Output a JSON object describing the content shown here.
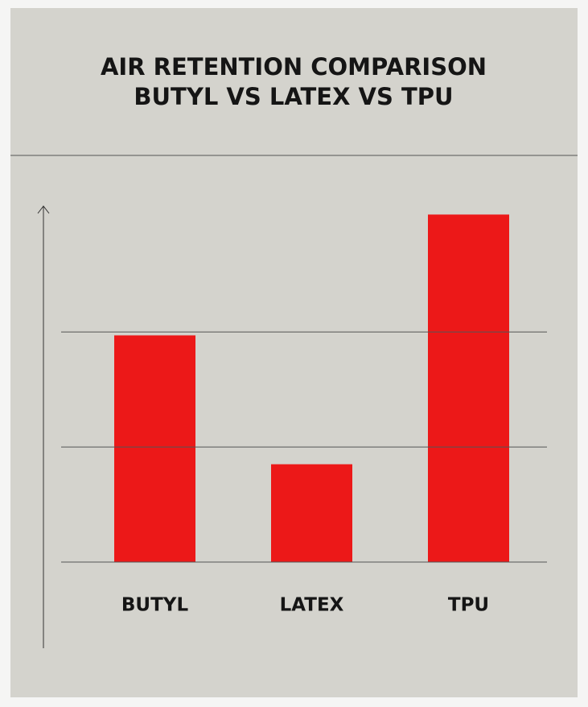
{
  "chart_data": {
    "type": "bar",
    "title": "AIR RETENTION COMPARISON",
    "subtitle": "BUTYL VS LATEX VS TPU",
    "categories": [
      "BUTYL",
      "LATEX",
      "TPU"
    ],
    "values": [
      1.97,
      0.85,
      3.02
    ],
    "color": "#ec1818",
    "ylim": [
      0,
      3.1
    ],
    "gridlines": [
      0,
      1,
      2
    ]
  }
}
